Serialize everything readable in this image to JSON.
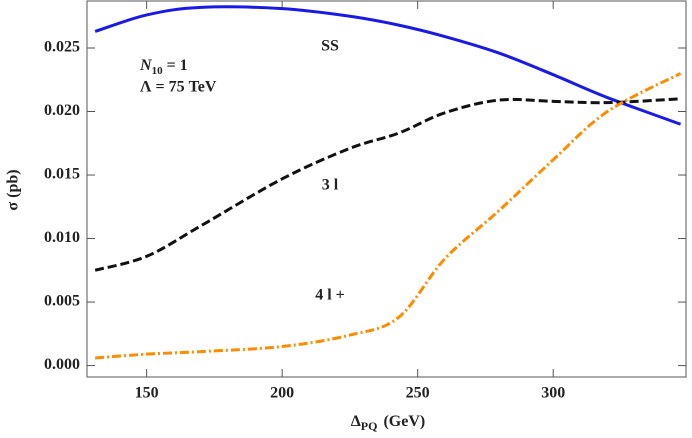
{
  "chart_data": {
    "type": "line",
    "x_label": {
      "symbol": "Δ",
      "subscript": "PQ",
      "unit": "(GeV)"
    },
    "y_label": "σ (pb)",
    "xlim": [
      128,
      349
    ],
    "ylim": [
      -0.0009,
      0.0287
    ],
    "xticks": [
      150,
      200,
      250,
      300
    ],
    "yticks": [
      {
        "value": 0,
        "label": "0.000"
      },
      {
        "value": 0.005,
        "label": "0.005"
      },
      {
        "value": 0.01,
        "label": "0.010"
      },
      {
        "value": 0.015,
        "label": "0.015"
      },
      {
        "value": 0.02,
        "label": "0.020"
      },
      {
        "value": 0.025,
        "label": "0.025"
      }
    ],
    "x": [
      131,
      150,
      170,
      200,
      225,
      243,
      260,
      280,
      300,
      320,
      347
    ],
    "series": [
      {
        "name": "SS",
        "color": "#1a1ae6",
        "dash": "solid",
        "values": [
          0.0263,
          0.0276,
          0.0282,
          0.0281,
          0.0275,
          0.0268,
          0.0259,
          0.0246,
          0.0229,
          0.0211,
          0.019
        ]
      },
      {
        "name": "3 l",
        "color": "#111111",
        "dash": "dashed",
        "values": [
          0.0075,
          0.0086,
          0.011,
          0.0147,
          0.0171,
          0.0183,
          0.0199,
          0.0209,
          0.0208,
          0.0207,
          0.021
        ]
      },
      {
        "name": "4 l +",
        "color": "#ff8c00",
        "dash": "dashdot",
        "values": [
          0.0006,
          0.0009,
          0.0011,
          0.0015,
          0.0024,
          0.0038,
          0.0084,
          0.0122,
          0.0162,
          0.02,
          0.023
        ]
      }
    ],
    "annotations": [
      {
        "parts": [
          "N",
          "10",
          " = 1"
        ]
      },
      {
        "parts": [
          "Λ = 75 TeV"
        ]
      }
    ]
  }
}
